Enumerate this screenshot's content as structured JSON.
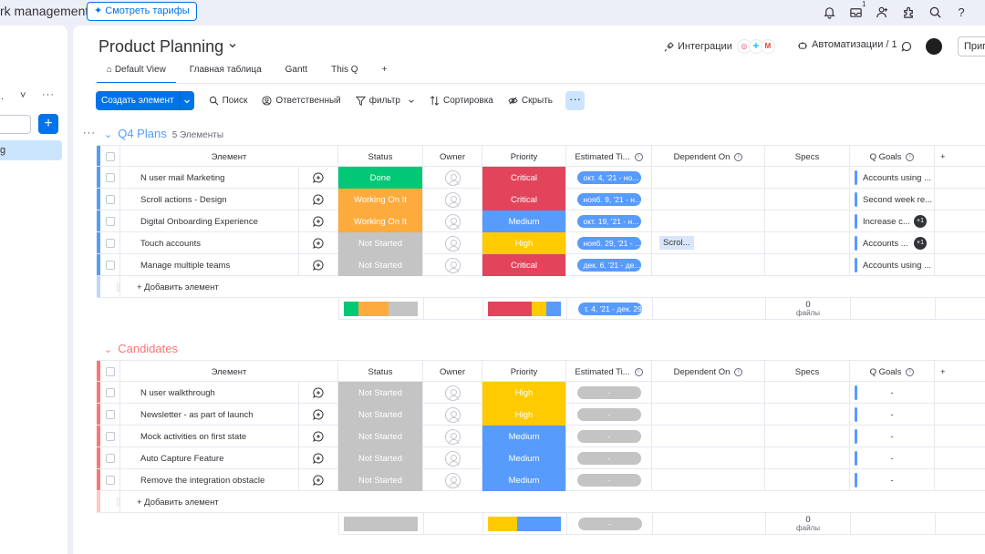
{
  "app": {
    "title_fragment": "rk management",
    "upgrade_label": "Смотреть тарифы",
    "notification_badge": "1"
  },
  "sidebar": {
    "collapse_label": "˅",
    "more_label": "···",
    "add_label": "+",
    "active_item_fragment": "g"
  },
  "board": {
    "title": "Product Planning",
    "integrations_label": "Интеграции",
    "automations_label": "Автоматизации / 1",
    "invite_label": "Пригл",
    "tabs": [
      {
        "label": "Default View",
        "active": true
      },
      {
        "label": "Главная таблица",
        "active": false
      },
      {
        "label": "Gantt",
        "active": false
      },
      {
        "label": "This Q",
        "active": false
      },
      {
        "label": "+",
        "active": false
      }
    ],
    "toolbar": {
      "create_label": "Создать элемент",
      "search_label": "Поиск",
      "person_label": "Ответственный",
      "filter_label": "фильтр",
      "sort_label": "Сортировка",
      "hide_label": "Скрыть",
      "more_label": "···"
    }
  },
  "columns": {
    "item": "Элемент",
    "status": "Status",
    "owner": "Owner",
    "priority": "Priority",
    "estimated": "Estimated Ti...",
    "dependent": "Dependent On",
    "specs": "Specs",
    "goals": "Q Goals"
  },
  "colors": {
    "done": "#00c875",
    "working": "#fdab3d",
    "stuck": "#c4c4c4",
    "critical": "#e2445c",
    "medium": "#579bfc",
    "high": "#ffcb00",
    "group1": "#579bfc",
    "group2": "#ff7575",
    "timeline_empty": "#c4c4c4"
  },
  "groups": [
    {
      "title": "Q4 Plans",
      "count": "5 Элементы",
      "color": "#579bfc",
      "add_label": "+ Добавить элемент",
      "files_count": "0",
      "files_label": "файлы",
      "timeline_summary": "т. 4, '21 - дек. 29,",
      "status_summary": [
        {
          "color": "#00c875",
          "fraction": 0.2
        },
        {
          "color": "#fdab3d",
          "fraction": 0.4
        },
        {
          "color": "#c4c4c4",
          "fraction": 0.4
        }
      ],
      "priority_summary": [
        {
          "color": "#e2445c",
          "fraction": 0.6
        },
        {
          "color": "#ffcb00",
          "fraction": 0.2
        },
        {
          "color": "#579bfc",
          "fraction": 0.2
        }
      ],
      "items": [
        {
          "name": "N user mail Marketing",
          "status": "Done",
          "status_color": "#00c875",
          "priority": "Critical",
          "priority_color": "#e2445c",
          "timeline": "окт. 4, '21 - но...",
          "timeline_color": "#579bfc",
          "dependent": "",
          "goal": "Accounts using ...",
          "plus": ""
        },
        {
          "name": "Scroll actions - Design",
          "status": "Working On It",
          "status_color": "#fdab3d",
          "priority": "Critical",
          "priority_color": "#e2445c",
          "timeline": "нояб. 9, '21 - н...",
          "timeline_color": "#579bfc",
          "dependent": "",
          "goal": "Second week re...",
          "plus": ""
        },
        {
          "name": "Digital Onboarding Experience",
          "status": "Working On It",
          "status_color": "#fdab3d",
          "priority": "Medium",
          "priority_color": "#579bfc",
          "timeline": "окт. 19, '21 - н...",
          "timeline_color": "#579bfc",
          "dependent": "",
          "goal": "Increase c...",
          "plus": "+1"
        },
        {
          "name": "Touch accounts",
          "status": "Not Started",
          "status_color": "#c4c4c4",
          "priority": "High",
          "priority_color": "#ffcb00",
          "timeline": "нояб. 29, '21 - ...",
          "timeline_color": "#579bfc",
          "dependent": "Scrol...",
          "goal": "Accounts ...",
          "plus": "+1"
        },
        {
          "name": "Manage multiple teams",
          "status": "Not Started",
          "status_color": "#c4c4c4",
          "priority": "Critical",
          "priority_color": "#e2445c",
          "timeline": "дек. 6, '21 - де...",
          "timeline_color": "#579bfc",
          "dependent": "",
          "goal": "Accounts using ...",
          "plus": ""
        }
      ]
    },
    {
      "title": "Candidates",
      "count": "",
      "color": "#ff7575",
      "add_label": "+ Добавить элемент",
      "files_count": "0",
      "files_label": "файлы",
      "timeline_summary": "-",
      "status_summary": [
        {
          "color": "#c4c4c4",
          "fraction": 1.0
        }
      ],
      "priority_summary": [
        {
          "color": "#ffcb00",
          "fraction": 0.4
        },
        {
          "color": "#579bfc",
          "fraction": 0.6
        }
      ],
      "items": [
        {
          "name": "N user walkthrough",
          "status": "Not Started",
          "status_color": "#c4c4c4",
          "priority": "High",
          "priority_color": "#ffcb00",
          "timeline": "-",
          "timeline_color": "#c4c4c4",
          "dependent": "",
          "goal": "-",
          "plus": ""
        },
        {
          "name": "Newsletter - as part of launch",
          "status": "Not Started",
          "status_color": "#c4c4c4",
          "priority": "High",
          "priority_color": "#ffcb00",
          "timeline": "-",
          "timeline_color": "#c4c4c4",
          "dependent": "",
          "goal": "-",
          "plus": ""
        },
        {
          "name": "Mock activities on first state",
          "status": "Not Started",
          "status_color": "#c4c4c4",
          "priority": "Medium",
          "priority_color": "#579bfc",
          "timeline": "-",
          "timeline_color": "#c4c4c4",
          "dependent": "",
          "goal": "-",
          "plus": ""
        },
        {
          "name": "Auto Capture Feature",
          "status": "Not Started",
          "status_color": "#c4c4c4",
          "priority": "Medium",
          "priority_color": "#579bfc",
          "timeline": "-",
          "timeline_color": "#c4c4c4",
          "dependent": "",
          "goal": "-",
          "plus": ""
        },
        {
          "name": "Remove the integration obstacle",
          "status": "Not Started",
          "status_color": "#c4c4c4",
          "priority": "Medium",
          "priority_color": "#579bfc",
          "timeline": "-",
          "timeline_color": "#c4c4c4",
          "dependent": "",
          "goal": "-",
          "plus": ""
        }
      ]
    }
  ]
}
